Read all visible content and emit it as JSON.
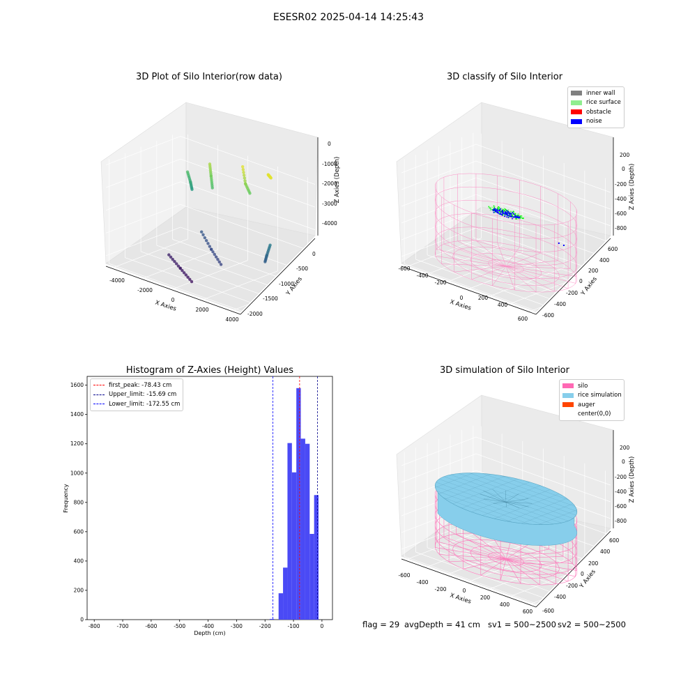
{
  "suptitle": "ESESR02 2025-04-14 14:25:43",
  "colors": {
    "inner_wall": "#808080",
    "rice_surface": "#90ee90",
    "obstacle": "#ff0000",
    "noise": "#0000ff",
    "silo": "#ff69b4",
    "rice_simulation": "#87ceeb",
    "auger": "#ff4500",
    "hist_bar": "#4a4af5"
  },
  "plot1": {
    "title": "3D Plot of Silo Interior(row data)",
    "xlabel": "X Axies",
    "ylabel": "Y Axies",
    "zlabel": "Z Axies (Depth)",
    "xticks": [
      "-4000",
      "-2000",
      "0",
      "2000",
      "4000"
    ],
    "yticks": [
      "0",
      "-500",
      "-1000",
      "-1500",
      "-2000"
    ],
    "zticks": [
      "0",
      "-1000",
      "-2000",
      "-3000",
      "-4000"
    ]
  },
  "plot2": {
    "title": "3D classify of Silo Interior",
    "xlabel": "X Axies",
    "ylabel": "Y Axies",
    "zlabel": "Z Axies (Depth)",
    "xticks": [
      "-600",
      "-400",
      "-200",
      "0",
      "200",
      "400",
      "600"
    ],
    "yticks": [
      "600",
      "400",
      "200",
      "0",
      "-200",
      "-400",
      "-600"
    ],
    "zticks": [
      "200",
      "0",
      "-200",
      "-400",
      "-600",
      "-800"
    ],
    "legend": [
      "inner wall",
      "rice surface",
      "obstacle",
      "noise"
    ]
  },
  "plot4": {
    "title": "3D simulation of Silo Interior",
    "xlabel": "X Axies",
    "ylabel": "Y Axies",
    "zlabel": "Z Axies (Depth)",
    "xticks": [
      "-600",
      "-400",
      "-200",
      "0",
      "200",
      "400",
      "600"
    ],
    "yticks": [
      "600",
      "400",
      "200",
      "0",
      "-200",
      "-400",
      "-600"
    ],
    "zticks": [
      "200",
      "0",
      "-200",
      "-400",
      "-600",
      "-800"
    ],
    "legend": [
      "silo",
      "rice simulation",
      "auger",
      "center(0,0)"
    ]
  },
  "footer": {
    "flag": "flag = 29",
    "avg_depth": "avgDepth = 41 cm",
    "sv1": "sv1 = 500~2500",
    "sv2": "sv2 = 500~2500"
  },
  "chart_data": [
    {
      "type": "scatter",
      "title": "3D Plot of Silo Interior(row data)",
      "xlabel": "X Axies",
      "ylabel": "Y Axies",
      "zlabel": "Z Axies (Depth)",
      "xlim": [
        -4500,
        4500
      ],
      "ylim": [
        -2100,
        250
      ],
      "zlim": [
        -4400,
        200
      ],
      "colormap": "viridis by depth",
      "clusters": [
        {
          "x": [
            -3500,
            -3300,
            -3200
          ],
          "y": [
            0,
            0,
            0
          ],
          "z": [
            -1200,
            -1600,
            -1900
          ]
        },
        {
          "x": [
            -1800,
            -1500,
            -1200
          ],
          "y": [
            -100,
            -200,
            -300
          ],
          "z": [
            -400,
            -800,
            -1200
          ]
        },
        {
          "x": [
            400,
            800,
            1200
          ],
          "y": [
            -100,
            -200,
            -250
          ],
          "z": [
            0,
            -600,
            -900
          ]
        },
        {
          "x": [
            2000,
            2200,
            2400
          ],
          "y": [
            -50,
            -100,
            -150
          ],
          "z": [
            0,
            0,
            0
          ]
        },
        {
          "x": [
            -1500,
            0,
            1500
          ],
          "y": [
            -500,
            -900,
            -1300
          ],
          "z": [
            -3100,
            -3300,
            -3400
          ]
        },
        {
          "x": [
            -2200,
            -800,
            600
          ],
          "y": [
            -1200,
            -1500,
            -1800
          ],
          "z": [
            -3900,
            -4000,
            -4100
          ]
        },
        {
          "x": [
            3300,
            3500,
            3600
          ],
          "y": [
            -600,
            -800,
            -900
          ],
          "z": [
            -2500,
            -2800,
            -3000
          ]
        }
      ]
    },
    {
      "type": "scatter",
      "title": "3D classify of Silo Interior",
      "xlabel": "X Axies",
      "ylabel": "Y Axies",
      "zlabel": "Z Axies (Depth)",
      "xlim": [
        -650,
        650
      ],
      "ylim": [
        -650,
        650
      ],
      "zlim": [
        -900,
        350
      ],
      "series": [
        {
          "name": "inner wall",
          "points": []
        },
        {
          "name": "rice surface",
          "x": [
            -150,
            -100,
            -50,
            0,
            50,
            100,
            150
          ],
          "y": [
            0,
            30,
            -20,
            10,
            -10,
            20,
            0
          ],
          "z": [
            -180,
            -170,
            -175,
            -160,
            -165,
            -170,
            -180
          ]
        },
        {
          "name": "obstacle",
          "points": []
        },
        {
          "name": "noise",
          "x": [
            -120,
            -60,
            0,
            60,
            120,
            400,
            420
          ],
          "y": [
            20,
            -30,
            40,
            -20,
            10,
            200,
            250
          ],
          "z": [
            -170,
            -175,
            -160,
            -165,
            -170,
            -400,
            -430
          ]
        }
      ],
      "silo_wireframe": {
        "radius": 600,
        "z_top": 0,
        "z_bottom": -800
      }
    },
    {
      "type": "bar",
      "title": "Histogram of Z-Axies (Height) Values",
      "xlabel": "Depth (cm)",
      "ylabel": "Frequency",
      "xlim": [
        -825,
        37
      ],
      "ylim": [
        0,
        1660
      ],
      "xticks": [
        -800,
        -700,
        -600,
        -500,
        -400,
        -300,
        -200,
        -100,
        0
      ],
      "yticks": [
        0,
        200,
        400,
        600,
        800,
        1000,
        1200,
        1400,
        1600
      ],
      "bin_width": 15.6,
      "bin_starts": [
        -183.5,
        -167.9,
        -152.3,
        -136.7,
        -121.1,
        -105.5,
        -89.9,
        -74.3,
        -58.7,
        -43.1,
        -27.5,
        -11.9
      ],
      "values": [
        5,
        0,
        180,
        355,
        1205,
        1005,
        1580,
        1235,
        1200,
        585,
        850,
        0
      ],
      "lines": [
        {
          "name": "first_peak: -78.43 cm",
          "x": -78.43,
          "color": "#ff0000"
        },
        {
          "name": "Upper_limit: -15.69 cm",
          "x": -15.69,
          "color": "#00008b"
        },
        {
          "name": "Lower_limit: -172.55 cm",
          "x": -172.55,
          "color": "#0000ff"
        }
      ]
    },
    {
      "type": "area",
      "title": "3D simulation of Silo Interior",
      "xlabel": "X Axies",
      "ylabel": "Y Axies",
      "zlabel": "Z Axies (Depth)",
      "xlim": [
        -650,
        650
      ],
      "ylim": [
        -650,
        650
      ],
      "zlim": [
        -900,
        350
      ],
      "series": [
        {
          "name": "silo",
          "radius": 600,
          "z_top": 0,
          "z_bottom": -800
        },
        {
          "name": "rice simulation",
          "surface_depth": -180
        },
        {
          "name": "auger",
          "points": []
        },
        {
          "name": "center(0,0)",
          "x": [
            0
          ],
          "y": [
            0
          ]
        }
      ]
    }
  ]
}
